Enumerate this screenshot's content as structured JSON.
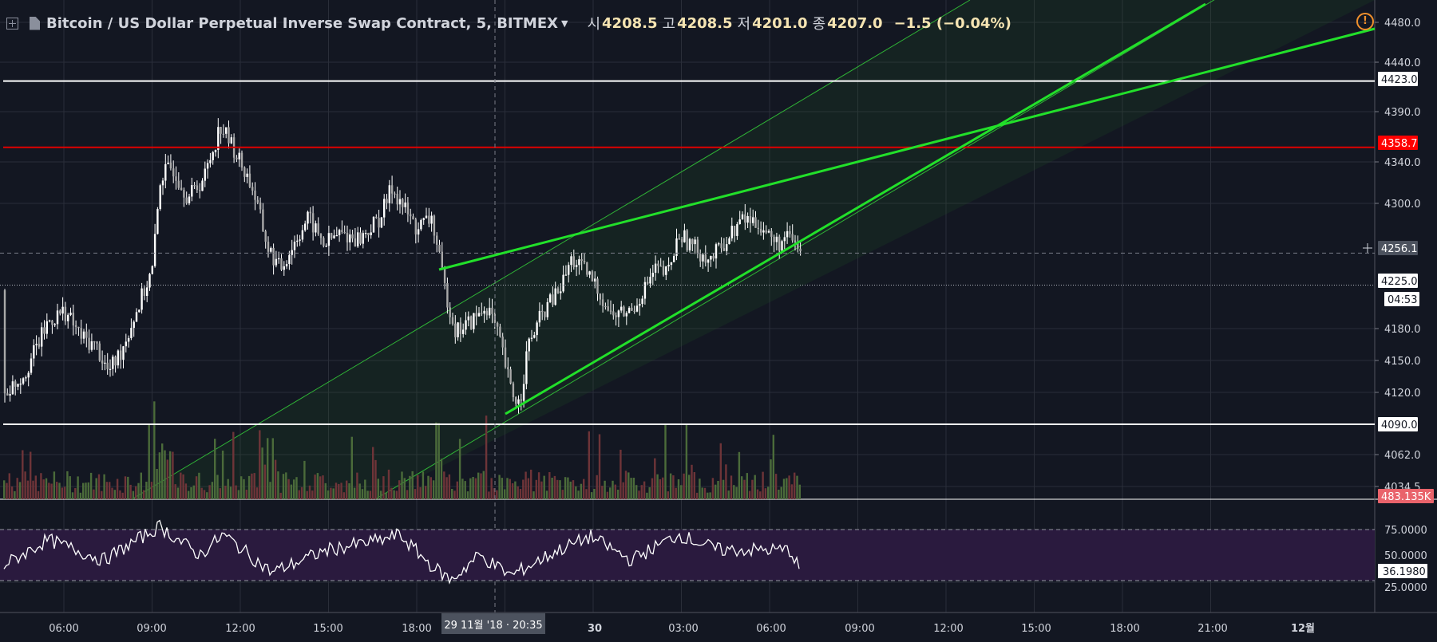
{
  "header": {
    "symbol": "Bitcoin / US Dollar Perpetual Inverse Swap Contract, 5, BITMEX",
    "open_label": "시",
    "open": "4208.5",
    "high_label": "고",
    "high": "4208.5",
    "low_label": "저",
    "low": "4201.0",
    "close_label": "종",
    "close": "4207.0",
    "change": "−1.5 (−0.04%)",
    "icons": [
      "toggle-legend-icon",
      "app-logo-icon",
      "chevron-down-icon",
      "alert-icon"
    ]
  },
  "colors": {
    "background": "#131722",
    "candle": "#ffffff",
    "trendline": "#22e02a",
    "resistance": "#e00000",
    "horizontal_line": "#ffffff",
    "volume_up": "#4b6b3a",
    "volume_down": "#6e3438",
    "rsi_line": "#ffffff",
    "rsi_band": "#2a1a3e"
  },
  "price_axis": {
    "ticks": [
      "4480.0",
      "4440.0",
      "4390.0",
      "4340.0",
      "4300.0",
      "4180.0",
      "4150.0",
      "4120.0",
      "4062.0",
      "4034.5"
    ],
    "labels": [
      {
        "text": "4423.0",
        "kind": "white"
      },
      {
        "text": "4358.7",
        "kind": "red"
      },
      {
        "text": "4256.1",
        "kind": "crosshair"
      },
      {
        "text": "4225.0",
        "kind": "white"
      },
      {
        "text": "04:53",
        "kind": "white"
      },
      {
        "text": "4090.0",
        "kind": "white"
      },
      {
        "text": "483.135K",
        "kind": "volume"
      }
    ]
  },
  "rsi_axis": {
    "ticks": [
      "75.0000",
      "50.0000",
      "25.0000"
    ],
    "current": "36.1980"
  },
  "time_axis": {
    "ticks": [
      "06:00",
      "09:00",
      "12:00",
      "15:00",
      "18:00",
      "30",
      "03:00",
      "06:00",
      "09:00",
      "12:00",
      "15:00",
      "18:00",
      "21:00",
      "12월"
    ],
    "crosshair": "29 11월 '18 · 20:35"
  },
  "chart_data": {
    "type": "candlestick",
    "timeframe": "5",
    "horizontal_levels": [
      {
        "price": 4423.0,
        "color": "white"
      },
      {
        "price": 4358.7,
        "color": "red"
      },
      {
        "price": 4090.0,
        "color": "white"
      }
    ],
    "last_price": 4225.0,
    "countdown": "04:53",
    "crosshair_price": 4256.1,
    "volume_last": "483.135K",
    "rsi_current": 36.198,
    "rsi_bands": [
      70,
      30
    ]
  }
}
